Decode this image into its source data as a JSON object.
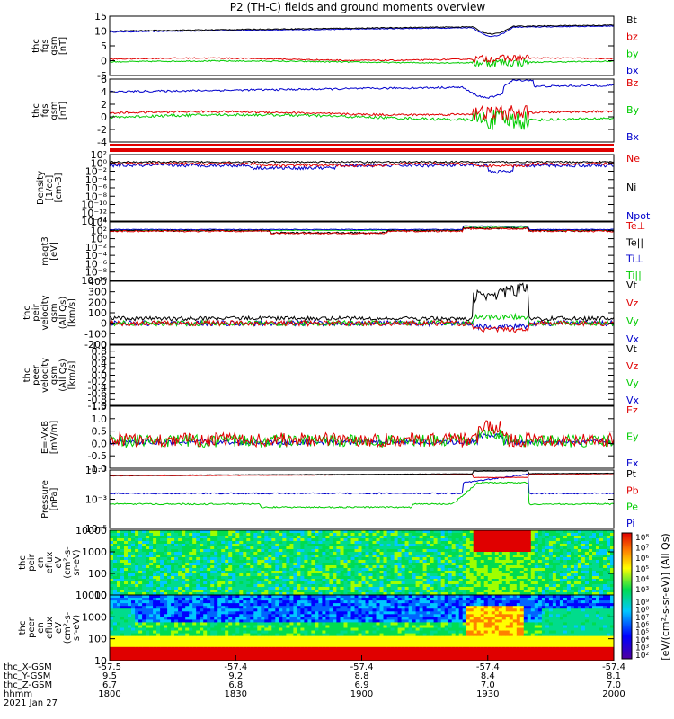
{
  "title": "P2 (TH-C) fields and ground moments overview",
  "colors": {
    "black": "#000000",
    "red": "#e00000",
    "green": "#00cc00",
    "blue": "#0000cc"
  },
  "panels": [
    {
      "id": "fgs-gsm",
      "ylabel": [
        "thc",
        "fgs",
        "gsm",
        "[nT]"
      ],
      "ticks": [
        "15",
        "10",
        "5",
        "0",
        "-5"
      ],
      "legend": [
        {
          "label": "Bt",
          "color": "black"
        },
        {
          "label": "bz",
          "color": "red"
        },
        {
          "label": "by",
          "color": "green"
        },
        {
          "label": "bx",
          "color": "blue"
        }
      ]
    },
    {
      "id": "fgs-gse",
      "ylabel": [
        "thc",
        "fgs",
        "gsm",
        "[nT]"
      ],
      "ticks": [
        "6",
        "4",
        "2",
        "0",
        "-2",
        "-4"
      ],
      "legend": [
        {
          "label": "Bz",
          "color": "red"
        },
        {
          "label": "By",
          "color": "green"
        },
        {
          "label": "Bx",
          "color": "blue"
        }
      ]
    },
    {
      "id": "density",
      "ylabel": [
        "Density",
        "[1/cc]",
        "[cm-3]"
      ],
      "ticks": [
        "10²",
        "10⁰",
        "10⁻²",
        "10⁻⁴",
        "10⁻⁶",
        "10⁻⁸",
        "10⁻¹⁰",
        "10⁻¹²",
        "10⁻¹⁴"
      ],
      "legend": [
        {
          "label": "Ne",
          "color": "red"
        },
        {
          "label": "Ni",
          "color": "black"
        },
        {
          "label": "Npot",
          "color": "blue"
        }
      ]
    },
    {
      "id": "temperature",
      "ylabel": [
        "magt3",
        "[eV]"
      ],
      "ticks": [
        "10⁴",
        "10²",
        "10⁰",
        "10⁻²",
        "10⁻⁴",
        "10⁻⁶",
        "10⁻⁸",
        "10⁻¹⁰"
      ],
      "legend": [
        {
          "label": "Te⊥",
          "color": "red"
        },
        {
          "label": "Te||",
          "color": "black"
        },
        {
          "label": "Ti⊥",
          "color": "blue"
        },
        {
          "label": "Ti||",
          "color": "green"
        }
      ]
    },
    {
      "id": "ion-velocity",
      "ylabel": [
        "thc",
        "peir",
        "velocity",
        "gsm",
        "(All Qs)",
        "[km/s]"
      ],
      "ticks": [
        "400",
        "300",
        "200",
        "100",
        "0",
        "-100",
        "-200"
      ],
      "legend": [
        {
          "label": "Vt",
          "color": "black"
        },
        {
          "label": "Vz",
          "color": "red"
        },
        {
          "label": "Vy",
          "color": "green"
        },
        {
          "label": "Vx",
          "color": "blue"
        }
      ]
    },
    {
      "id": "electron-velocity",
      "ylabel": [
        "thc",
        "peer",
        "velocity",
        "gsm",
        "(All Qs)",
        "[km/s]"
      ],
      "ticks": [
        "1.0",
        "0.8",
        "0.6",
        "0.4",
        "0.2",
        "0.0",
        "-0.2",
        "-0.4",
        "-0.6",
        "-0.8",
        "-1.0"
      ],
      "legend": [
        {
          "label": "Vt",
          "color": "black"
        },
        {
          "label": "Vz",
          "color": "red"
        },
        {
          "label": "Vy",
          "color": "green"
        },
        {
          "label": "Vx",
          "color": "blue"
        }
      ]
    },
    {
      "id": "efield",
      "ylabel": [
        "E=-VxB",
        "[mV/m]"
      ],
      "ticks": [
        "1.5",
        "1.0",
        "0.5",
        "0.0",
        "-0.5",
        "-1.0"
      ],
      "legend": [
        {
          "label": "Ez",
          "color": "red"
        },
        {
          "label": "Ey",
          "color": "green"
        },
        {
          "label": "Ex",
          "color": "blue"
        }
      ]
    },
    {
      "id": "pressure",
      "ylabel": [
        "Pressure",
        "[nPa]"
      ],
      "ticks": [
        "10⁻¹",
        "10⁻³",
        "10⁻⁵"
      ],
      "legend": [
        {
          "label": "Pt",
          "color": "black"
        },
        {
          "label": "Pb",
          "color": "red"
        },
        {
          "label": "Pe",
          "color": "green"
        },
        {
          "label": "Pi",
          "color": "blue"
        }
      ]
    },
    {
      "id": "ion-spectrogram",
      "ylabel": [
        "thc",
        "peir",
        "en",
        "eflux",
        "eV",
        "(cm²-s-",
        "sr-eV)"
      ],
      "ticks": [
        "10000",
        "1000",
        "100",
        "10"
      ],
      "colorbar_ticks": [
        "10⁸",
        "10⁷",
        "10⁶",
        "10⁵",
        "10⁴",
        "10³"
      ],
      "legend": []
    },
    {
      "id": "electron-spectrogram",
      "ylabel": [
        "thc",
        "peer",
        "en",
        "eflux",
        "eV",
        "(cm²-s-",
        "sr-eV)"
      ],
      "ticks": [
        "10000",
        "1000",
        "100",
        "10"
      ],
      "colorbar_ticks": [
        "10⁹",
        "10⁸",
        "10⁷",
        "10⁶",
        "10⁵",
        "10⁴",
        "10³",
        "10²"
      ],
      "legend": []
    }
  ],
  "colorbar_label": "[eV/(cm²-s-sr-eV)] (All Qs)",
  "xaxis": {
    "row_labels": [
      "thc_X-GSM",
      "thc_Y-GSM",
      "thc_Z-GSM",
      "hhmm",
      "2021 Jan 27"
    ],
    "columns": [
      [
        "-57.5",
        "9.5",
        "6.7",
        "1800"
      ],
      [
        "-57.4",
        "9.2",
        "6.8",
        "1830"
      ],
      [
        "-57.4",
        "8.8",
        "6.9",
        "1900"
      ],
      [
        "-57.4",
        "8.4",
        "7.0",
        "1930"
      ],
      [
        "-57.4",
        "8.1",
        "7.0",
        "2000"
      ]
    ]
  },
  "chart_data": {
    "type": "line",
    "title": "P2 (TH-C) fields and ground moments overview",
    "x": [
      "1800",
      "1830",
      "1900",
      "1930",
      "2000"
    ],
    "xlabel": "hhmm",
    "date": "2021 Jan 27",
    "xlim": [
      "1800",
      "2000"
    ],
    "panels": [
      {
        "ylabel": "thc fgs gsm [nT]",
        "ylim": [
          -5,
          15
        ],
        "series": [
          {
            "name": "Bt",
            "values": [
              9.5,
              10.5,
              11,
              10,
              12.5
            ]
          },
          {
            "name": "bz",
            "values": [
              0.5,
              0.3,
              0.4,
              0,
              1
            ]
          },
          {
            "name": "by",
            "values": [
              -0.5,
              -0.4,
              -0.6,
              -1.5,
              -0.8
            ]
          },
          {
            "name": "bx",
            "values": [
              9.2,
              10.4,
              11,
              9,
              12.4
            ]
          }
        ]
      },
      {
        "ylabel": "thc fgs gsm [nT]",
        "ylim": [
          -5,
          7
        ],
        "series": [
          {
            "name": "Bz",
            "values": [
              0.5,
              0.3,
              0.4,
              0,
              0.5
            ]
          },
          {
            "name": "By",
            "values": [
              -0.3,
              -0.3,
              -0.4,
              -1.5,
              -1
            ]
          },
          {
            "name": "Bx",
            "values": [
              4.5,
              5.2,
              5.6,
              3,
              6
            ]
          }
        ]
      },
      {
        "ylabel": "Density [cm-3]",
        "ylim": [
          1e-14,
          100
        ],
        "scale": "log",
        "series": [
          {
            "name": "Ne",
            "values": [
              0.1,
              0.08,
              0.1,
              0.02,
              0.1
            ]
          },
          {
            "name": "Ni",
            "values": [
              0.15,
              0.12,
              0.14,
              0.03,
              0.12
            ]
          },
          {
            "name": "Npot",
            "values": [
              0.05,
              0.01,
              0.05,
              0.01,
              0.01
            ]
          }
        ]
      },
      {
        "ylabel": "magt3 [eV]",
        "ylim": [
          1e-10,
          10000
        ],
        "scale": "log",
        "series": [
          {
            "name": "Te⊥",
            "values": [
              50,
              30,
              40,
              200,
              60
            ]
          },
          {
            "name": "Te||",
            "values": [
              60,
              40,
              50,
              300,
              70
            ]
          },
          {
            "name": "Ti⊥",
            "values": [
              150,
              150,
              160,
              1000,
              200
            ]
          },
          {
            "name": "Ti||",
            "values": [
              100,
              100,
              110,
              700,
              150
            ]
          }
        ]
      },
      {
        "ylabel": "thc peir velocity gsm (All Qs) [km/s]",
        "ylim": [
          -200,
          400
        ],
        "series": [
          {
            "name": "Vt",
            "values": [
              20,
              20,
              20,
              350,
              20
            ]
          },
          {
            "name": "Vz",
            "values": [
              0,
              0,
              0,
              -60,
              0
            ]
          },
          {
            "name": "Vy",
            "values": [
              0,
              0,
              0,
              80,
              0
            ]
          },
          {
            "name": "Vx",
            "values": [
              0,
              0,
              0,
              -40,
              0
            ]
          }
        ]
      },
      {
        "ylabel": "thc peer velocity gsm (All Qs) [km/s]",
        "ylim": [
          -1,
          1
        ],
        "series": []
      },
      {
        "ylabel": "E=-VxB [mV/m]",
        "ylim": [
          -1,
          1.5
        ],
        "series": [
          {
            "name": "Ez",
            "values": [
              0.15,
              0.15,
              0.15,
              0.6,
              0.15
            ]
          },
          {
            "name": "Ey",
            "values": [
              0.1,
              0.1,
              0.1,
              0.4,
              0.1
            ]
          },
          {
            "name": "Ex",
            "values": [
              0,
              0,
              0,
              0.2,
              0
            ]
          }
        ]
      },
      {
        "ylabel": "Pressure [nPa]",
        "ylim": [
          1e-06,
          0.5
        ],
        "scale": "log",
        "series": [
          {
            "name": "Pt",
            "values": [
              0.1,
              0.12,
              0.13,
              0.2,
              0.15
            ]
          },
          {
            "name": "Pb",
            "values": [
              0.09,
              0.11,
              0.12,
              0.12,
              0.14
            ]
          },
          {
            "name": "Pe",
            "values": [
              0.0002,
              8e-05,
              8e-05,
              0.005,
              0.0001
            ]
          },
          {
            "name": "Pi",
            "values": [
              0.002,
              0.002,
              0.002,
              0.02,
              0.002
            ]
          }
        ]
      }
    ]
  }
}
